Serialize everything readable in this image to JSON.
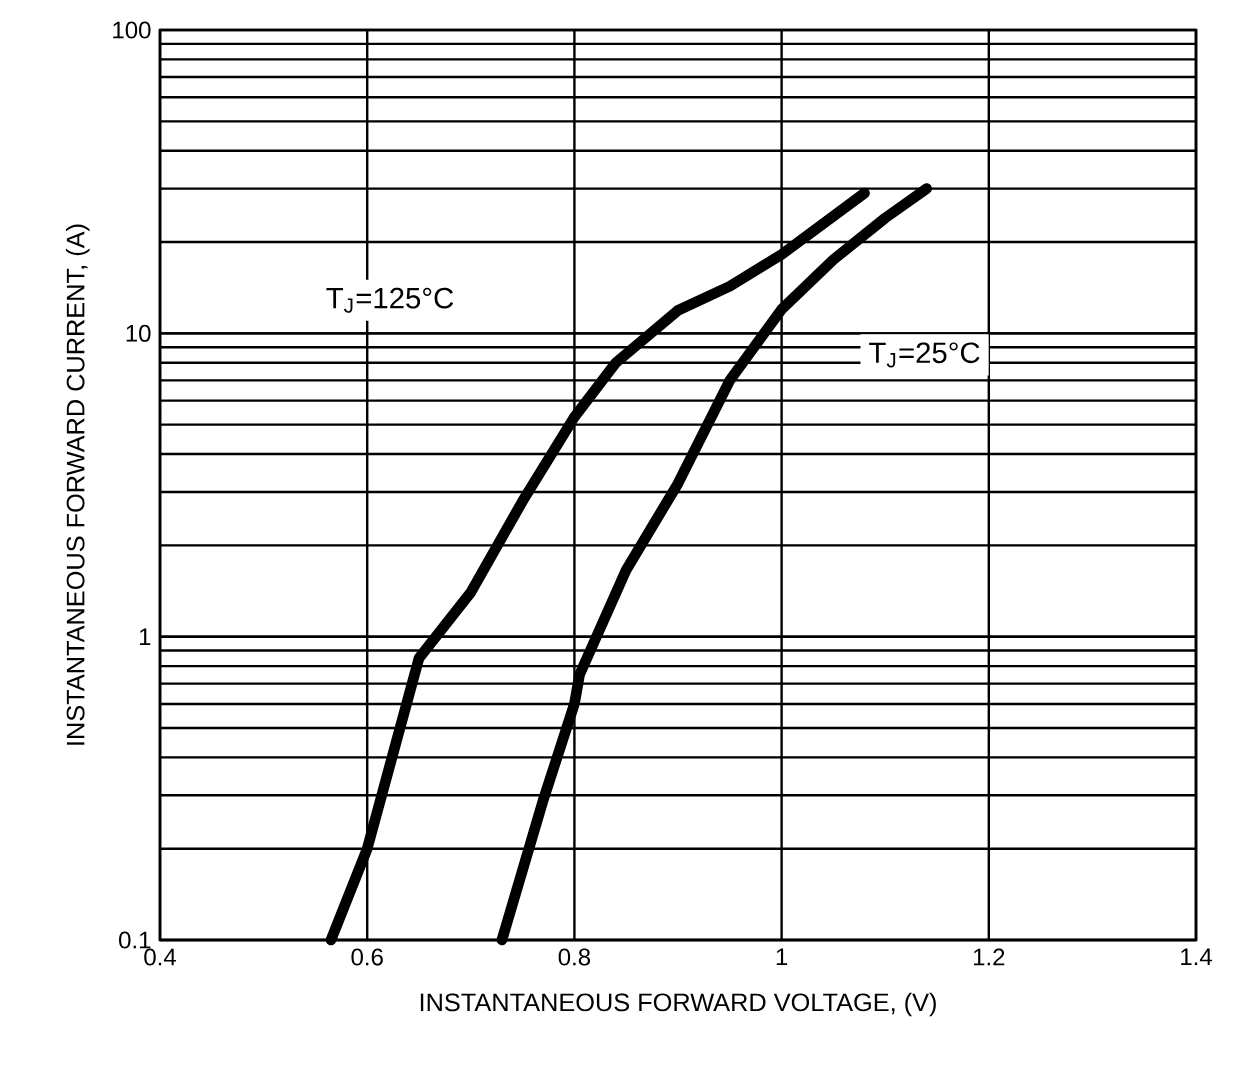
{
  "chart_data": {
    "type": "line",
    "xlabel": "INSTANTANEOUS FORWARD VOLTAGE, (V)",
    "ylabel": "INSTANTANEOUS FORWARD CURRENT, (A)",
    "log": "y",
    "grid": true,
    "marker": "none",
    "line_style": "solid",
    "xlim": [
      0.4,
      1.4
    ],
    "xticks": [
      0.4,
      0.6,
      0.8,
      1,
      1.2,
      1.4
    ],
    "ylim": [
      0.1,
      100
    ],
    "yticks": [
      0.1,
      1,
      10,
      100
    ],
    "series": [
      {
        "color": "#000000",
        "x": [
          0.565,
          0.6,
          0.65,
          0.7,
          0.75,
          0.8,
          0.84,
          0.9,
          0.95,
          1.0,
          1.08
        ],
        "values": [
          0.1,
          0.2,
          0.85,
          1.4,
          2.8,
          5.3,
          8,
          11.9,
          14.3,
          18.2,
          29
        ]
      },
      {
        "color": "#000000",
        "x": [
          0.73,
          0.77,
          0.8,
          0.805,
          0.85,
          0.9,
          0.95,
          1.0,
          1.05,
          1.1,
          1.14
        ],
        "values": [
          0.1,
          0.29,
          0.6,
          0.75,
          1.66,
          3.2,
          7,
          12,
          17.5,
          24,
          30
        ]
      }
    ],
    "annotations": [
      "T$_{J}$=125°C",
      "T$_{J}$=25°C"
    ]
  }
}
